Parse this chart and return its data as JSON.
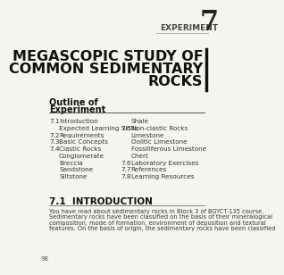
{
  "bg_color": "#f5f5f0",
  "experiment_label": "EXPERIMENT",
  "experiment_number": "7",
  "main_title_lines": [
    "MEGASCOPIC STUDY OF",
    "COMMON SEDIMENTARY",
    "ROCKS"
  ],
  "outline_title": "Outline of",
  "outline_subtitle": "Experiment",
  "toc_left": [
    [
      "7.1",
      "Introduction"
    ],
    [
      "",
      "Expected Learning Skills"
    ],
    [
      "7.2",
      "Requirements"
    ],
    [
      "7.3",
      "Basic Concepts"
    ],
    [
      "7.4",
      "Clastic Rocks"
    ],
    [
      "",
      "Conglomerate"
    ],
    [
      "",
      "Breccia"
    ],
    [
      "",
      "Sandstone"
    ],
    [
      "",
      "Siltstone"
    ]
  ],
  "toc_right": [
    [
      "",
      "Shale"
    ],
    [
      "7.5",
      "Non-clastic Rocks"
    ],
    [
      "",
      "Limestone"
    ],
    [
      "",
      "Oolitic Limestone"
    ],
    [
      "",
      "Fossiliferous Limestone"
    ],
    [
      "",
      "Chert"
    ],
    [
      "7.6",
      "Laboratory Exercises"
    ],
    [
      "7.7",
      "References"
    ],
    [
      "7.8",
      "Learning Resources"
    ]
  ],
  "section_title": "7.1  INTRODUCTION",
  "body_text": "You have read about sedimentary rocks in Block 3 of BGYCT-135 course.\nSedimentary rocks have been classified on the basis of their mineralogical\ncomposition, mode of formation, environment of deposition and textural\nfeatures. On the basis of origin, the sedimentary rocks have been classified",
  "page_number": "98"
}
